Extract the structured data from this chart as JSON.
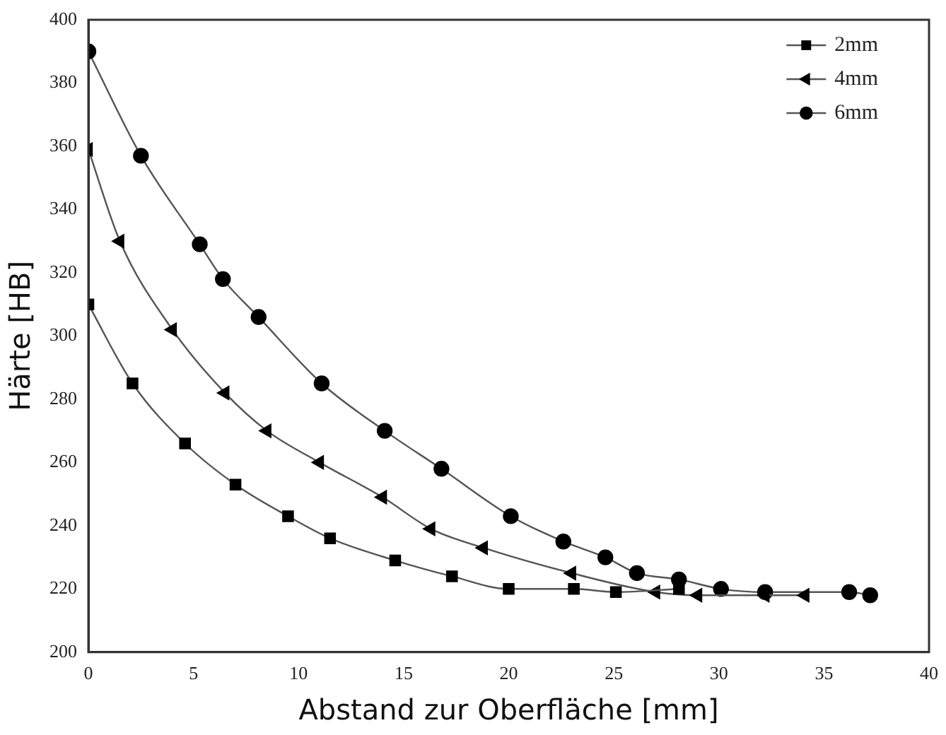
{
  "chart_data": {
    "type": "line",
    "xlabel": "Abstand zur Oberfläche [mm]",
    "ylabel": "Härte [HB]",
    "xlim": [
      0,
      40
    ],
    "xticks": [
      0,
      5,
      10,
      15,
      20,
      25,
      30,
      35,
      40
    ],
    "ylim": [
      200,
      400
    ],
    "yticks": [
      200,
      220,
      240,
      260,
      280,
      300,
      320,
      340,
      360,
      380,
      400
    ],
    "grid": false,
    "legend": "top right",
    "line_style": "solid",
    "series": [
      {
        "name": "2mm",
        "color": "#000000",
        "marker": "square",
        "x": [
          0,
          2.1,
          4.6,
          7,
          9.5,
          11.5,
          14.6,
          17.3,
          20,
          23.1,
          25.1,
          28.1
        ],
        "values": [
          310,
          285,
          266,
          253,
          243,
          236,
          229,
          224,
          220,
          220,
          219,
          220
        ]
      },
      {
        "name": "4mm",
        "color": "#000000",
        "marker": "triangle",
        "x": [
          0,
          1.5,
          4,
          6.5,
          8.5,
          11,
          14,
          16.3,
          18.8,
          23,
          25.1,
          27,
          29,
          32.2,
          34.1
        ],
        "values": [
          359,
          330,
          302,
          282,
          270,
          260,
          249,
          239,
          233,
          225,
          null,
          219,
          218,
          218,
          218
        ]
      },
      {
        "name": "6mm",
        "color": "#000000",
        "marker": "circle",
        "x": [
          0,
          2.5,
          5.3,
          6.4,
          8.1,
          11.1,
          14.1,
          16.8,
          20.1,
          22.6,
          24.6,
          26.1,
          28.1,
          30.1,
          32.2,
          36.2,
          37.2
        ],
        "values": [
          390,
          357,
          329,
          318,
          306,
          285,
          270,
          258,
          243,
          235,
          230,
          225,
          223,
          220,
          219,
          219,
          218
        ]
      }
    ]
  }
}
